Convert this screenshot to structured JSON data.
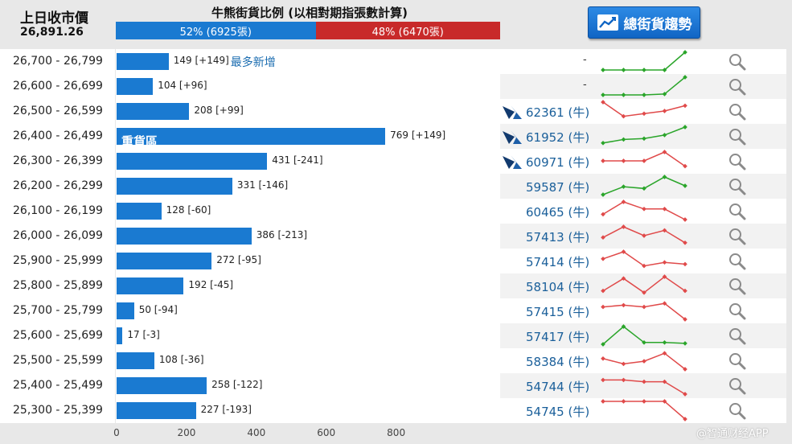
{
  "header": {
    "prev_close_label": "上日收市價",
    "prev_close_value": "26,891.26",
    "ratio_title": "牛熊街貨比例 (以相對期指張數計算)",
    "bull_pct": 0.52,
    "bull_label": "52% (6925張)",
    "bear_label": "48% (6470張)",
    "bull_color": "#1a7ad1",
    "bear_color": "#c82a2a",
    "trend_button_label": "總街貨趨勢",
    "trend_button_icon": "line-chart-icon"
  },
  "axis": {
    "max": 1100,
    "ticks": [
      "0",
      "200",
      "400",
      "600",
      "800"
    ],
    "tick_values": [
      0,
      200,
      400,
      600,
      800
    ]
  },
  "rows": [
    {
      "range": "26,700 - 26,799",
      "qty": 149,
      "label": "149 [+149]",
      "note": "最多新增",
      "code": "-",
      "has_icon": false,
      "trend": [
        0,
        0,
        0,
        0,
        1
      ],
      "trend_color": "#2aa52a"
    },
    {
      "range": "26,600 - 26,699",
      "qty": 104,
      "label": "104 [+96]",
      "note": "",
      "code": "-",
      "has_icon": false,
      "trend": [
        0,
        0,
        0,
        0.05,
        1
      ],
      "trend_color": "#2aa52a"
    },
    {
      "range": "26,500 - 26,599",
      "qty": 208,
      "label": "208 [+99]",
      "note": "",
      "code": "62361 (牛)",
      "has_icon": true,
      "trend": [
        1,
        0.2,
        0.35,
        0.5,
        0.8
      ],
      "trend_color": "#e04a4a"
    },
    {
      "range": "26,400 - 26,499",
      "qty": 769,
      "label": "769 [+149]",
      "note": "",
      "inner": "重貨區",
      "code": "61952 (牛)",
      "has_icon": true,
      "trend": [
        0.1,
        0.3,
        0.35,
        0.55,
        1
      ],
      "trend_color": "#2aa52a"
    },
    {
      "range": "26,300 - 26,399",
      "qty": 431,
      "label": "431 [-241]",
      "note": "",
      "code": "60971 (牛)",
      "has_icon": true,
      "trend": [
        0.5,
        0.5,
        0.5,
        1,
        0.2
      ],
      "trend_color": "#e04a4a"
    },
    {
      "range": "26,200 - 26,299",
      "qty": 331,
      "label": "331 [-146]",
      "note": "",
      "code": "59587 (牛)",
      "has_icon": false,
      "trend": [
        0,
        0.45,
        0.35,
        1,
        0.5
      ],
      "trend_color": "#2aa52a"
    },
    {
      "range": "26,100 - 26,199",
      "qty": 128,
      "label": "128 [-60]",
      "note": "",
      "code": "60465 (牛)",
      "has_icon": false,
      "trend": [
        0.3,
        1,
        0.6,
        0.6,
        0
      ],
      "trend_color": "#e04a4a"
    },
    {
      "range": "26,000 - 26,099",
      "qty": 386,
      "label": "386 [-213]",
      "note": "",
      "code": "57413 (牛)",
      "has_icon": false,
      "trend": [
        0.4,
        1,
        0.5,
        0.8,
        0.1
      ],
      "trend_color": "#e04a4a"
    },
    {
      "range": "25,900 - 25,999",
      "qty": 272,
      "label": "272 [-95]",
      "note": "",
      "code": "57414 (牛)",
      "has_icon": false,
      "trend": [
        0.6,
        1,
        0.2,
        0.4,
        0.3
      ],
      "trend_color": "#e04a4a"
    },
    {
      "range": "25,800 - 25,899",
      "qty": 192,
      "label": "192 [-45]",
      "note": "",
      "code": "58104 (牛)",
      "has_icon": false,
      "trend": [
        0.2,
        0.9,
        0.1,
        1,
        0.2
      ],
      "trend_color": "#e04a4a"
    },
    {
      "range": "25,700 - 25,799",
      "qty": 50,
      "label": "50 [-94]",
      "note": "",
      "code": "57415 (牛)",
      "has_icon": false,
      "trend": [
        0.7,
        0.8,
        0.7,
        0.9,
        0
      ],
      "trend_color": "#e04a4a"
    },
    {
      "range": "25,600 - 25,699",
      "qty": 17,
      "label": "17 [-3]",
      "note": "",
      "code": "57417 (牛)",
      "has_icon": false,
      "trend": [
        0,
        1,
        0.1,
        0.1,
        0.05
      ],
      "trend_color": "#2aa52a"
    },
    {
      "range": "25,500 - 25,599",
      "qty": 108,
      "label": "108 [-36]",
      "note": "",
      "code": "58384 (牛)",
      "has_icon": false,
      "trend": [
        0.6,
        0.3,
        0.45,
        0.9,
        0
      ],
      "trend_color": "#e04a4a"
    },
    {
      "range": "25,400 - 25,499",
      "qty": 258,
      "label": "258 [-122]",
      "note": "",
      "code": "54744 (牛)",
      "has_icon": false,
      "trend": [
        0.8,
        0.8,
        0.7,
        0.7,
        0
      ],
      "trend_color": "#e04a4a"
    },
    {
      "range": "25,300 - 25,399",
      "qty": 227,
      "label": "227 [-193]",
      "note": "",
      "code": "54745 (牛)",
      "has_icon": false,
      "trend": [
        1,
        1,
        1,
        1,
        0
      ],
      "trend_color": "#e04a4a"
    }
  ],
  "watermark": "@智通财经APP"
}
